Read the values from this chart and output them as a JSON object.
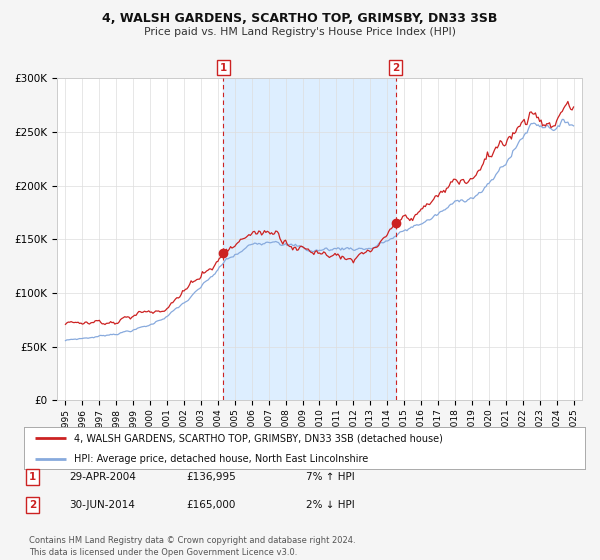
{
  "title": "4, WALSH GARDENS, SCARTHO TOP, GRIMSBY, DN33 3SB",
  "subtitle": "Price paid vs. HM Land Registry's House Price Index (HPI)",
  "background_color": "#f5f5f5",
  "plot_bg_color": "#ffffff",
  "legend_line1": "4, WALSH GARDENS, SCARTHO TOP, GRIMSBY, DN33 3SB (detached house)",
  "legend_line2": "HPI: Average price, detached house, North East Lincolnshire",
  "sale1_date": "29-APR-2004",
  "sale1_price": "£136,995",
  "sale1_hpi": "7% ↑ HPI",
  "sale2_date": "30-JUN-2014",
  "sale2_price": "£165,000",
  "sale2_hpi": "2% ↓ HPI",
  "footer": "Contains HM Land Registry data © Crown copyright and database right 2024.\nThis data is licensed under the Open Government Licence v3.0.",
  "hpi_color": "#88aadd",
  "price_color": "#cc2222",
  "shade_color": "#ddeeff",
  "grid_color": "#dddddd",
  "ylim": [
    0,
    300000
  ],
  "yticks": [
    0,
    50000,
    100000,
    150000,
    200000,
    250000,
    300000
  ],
  "ytick_labels": [
    "£0",
    "£50K",
    "£100K",
    "£150K",
    "£200K",
    "£250K",
    "£300K"
  ],
  "sale1_x": 2004.32,
  "sale2_x": 2014.5,
  "sale1_y": 136995,
  "sale2_y": 165000,
  "xmin": 1995.0,
  "xmax": 2025.0
}
